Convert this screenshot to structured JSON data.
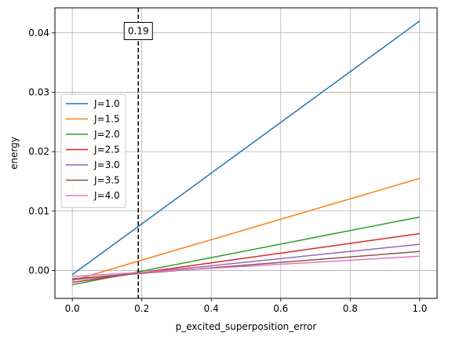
{
  "chart_data": {
    "type": "line",
    "xlabel": "p_excited_superposition_error",
    "ylabel": "energy",
    "xlim": [
      -0.05,
      1.05
    ],
    "ylim": [
      -0.0047,
      0.0442
    ],
    "xticks": [
      0.0,
      0.2,
      0.4,
      0.6,
      0.8,
      1.0
    ],
    "xtick_labels": [
      "0.0",
      "0.2",
      "0.4",
      "0.6",
      "0.8",
      "1.0"
    ],
    "yticks": [
      0.0,
      0.01,
      0.02,
      0.03,
      0.04
    ],
    "ytick_labels": [
      "0.00",
      "0.01",
      "0.02",
      "0.03",
      "0.04"
    ],
    "grid": true,
    "legend_position": "center-left",
    "series": [
      {
        "name": "J=1.0",
        "color": "#1f77b4",
        "x": [
          0.0,
          1.0
        ],
        "y": [
          -0.0007,
          0.042
        ]
      },
      {
        "name": "J=1.5",
        "color": "#ff7f0e",
        "x": [
          0.0,
          1.0
        ],
        "y": [
          -0.0017,
          0.0155
        ]
      },
      {
        "name": "J=2.0",
        "color": "#2ca02c",
        "x": [
          0.0,
          1.0
        ],
        "y": [
          -0.0024,
          0.009
        ]
      },
      {
        "name": "J=2.5",
        "color": "#d62728",
        "x": [
          0.0,
          1.0
        ],
        "y": [
          -0.002,
          0.0062
        ]
      },
      {
        "name": "J=3.0",
        "color": "#9467bd",
        "x": [
          0.0,
          1.0
        ],
        "y": [
          -0.0016,
          0.0044
        ]
      },
      {
        "name": "J=3.5",
        "color": "#8c564b",
        "x": [
          0.0,
          1.0
        ],
        "y": [
          -0.0014,
          0.0032
        ]
      },
      {
        "name": "J=4.0",
        "color": "#e377c2",
        "x": [
          0.0,
          1.0
        ],
        "y": [
          -0.001,
          0.0024
        ]
      }
    ],
    "annotations": [
      {
        "type": "vline",
        "x": 0.19,
        "style": "dashed",
        "color": "#000000",
        "label": "0.19",
        "label_y": 0.0403
      }
    ]
  }
}
